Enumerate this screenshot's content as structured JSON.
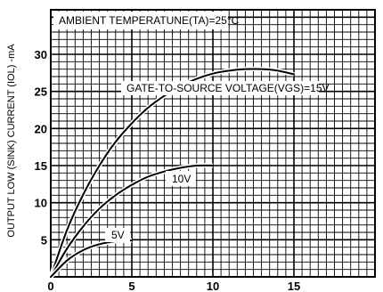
{
  "chart_data": {
    "type": "line",
    "title": "AMBIENT  TEMPERATUNE(TA)=25°C",
    "ylabel": "OUTPUT LOW (SINK) CURRENT (IOL) -mA",
    "xlabel": "",
    "xlim": [
      0,
      20
    ],
    "ylim": [
      0,
      36
    ],
    "x_ticks": [
      "0",
      "5",
      "10",
      "15"
    ],
    "y_ticks": [
      "5",
      "10",
      "15",
      "20",
      "25",
      "30"
    ],
    "grid": true,
    "series": [
      {
        "name": "GATE-TO-SOURCE  VOLTAGE(VGS)=15V",
        "x": [
          0,
          1,
          2,
          3,
          4,
          5,
          6,
          7,
          8,
          9,
          10,
          11,
          12,
          13,
          14,
          15
        ],
        "y": [
          0,
          6.3,
          11.1,
          15.0,
          18.2,
          20.7,
          22.8,
          24.4,
          25.7,
          26.7,
          27.4,
          27.8,
          28.0,
          28.0,
          27.8,
          27.3
        ]
      },
      {
        "name": "10V",
        "x": [
          0,
          1,
          2,
          3,
          4,
          5,
          6,
          7,
          8,
          9,
          10
        ],
        "y": [
          0,
          3.8,
          6.8,
          9.2,
          11.0,
          12.4,
          13.5,
          14.2,
          14.7,
          15.0,
          15.0
        ]
      },
      {
        "name": "5V",
        "x": [
          0,
          1,
          2,
          3,
          4,
          5
        ],
        "y": [
          0,
          2.2,
          3.6,
          4.4,
          4.8,
          4.9
        ]
      }
    ]
  }
}
